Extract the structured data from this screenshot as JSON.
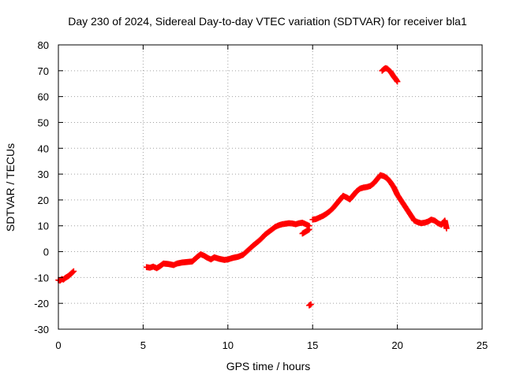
{
  "chart_data": {
    "type": "scatter",
    "title": "Day 230 of 2024, Sidereal Day-to-day VTEC variation (SDTVAR) for receiver bla1",
    "xlabel": "GPS time / hours",
    "ylabel": "SDTVAR / TECUs",
    "xlim": [
      0,
      25
    ],
    "ylim": [
      -30,
      80
    ],
    "xticks": [
      0,
      5,
      10,
      15,
      20,
      25
    ],
    "yticks": [
      -30,
      -20,
      -10,
      0,
      10,
      20,
      30,
      40,
      50,
      60,
      70,
      80
    ],
    "grid": true,
    "legend": "none",
    "marker": "plus",
    "color": "#ff0000",
    "series": [
      {
        "name": "SDTVAR",
        "segments": [
          {
            "x": [
              0.0,
              0.1,
              0.2,
              0.3,
              0.4,
              0.5,
              0.6,
              0.7,
              0.8,
              0.9
            ],
            "y": [
              -11.0,
              -11.2,
              -10.6,
              -10.8,
              -10.2,
              -9.8,
              -9.4,
              -8.8,
              -8.2,
              -7.6
            ]
          },
          {
            "x": [
              5.2,
              5.4,
              5.6,
              5.8,
              6.0,
              6.2,
              6.5,
              6.8,
              7.0,
              7.3,
              7.6,
              7.9,
              8.2,
              8.4,
              8.6,
              8.8,
              9.0,
              9.2,
              9.5,
              9.8,
              10.0,
              10.3,
              10.6,
              10.9,
              11.2,
              11.5,
              11.8,
              12.0,
              12.2,
              12.4,
              12.6,
              12.8,
              13.0,
              13.2,
              13.4,
              13.6,
              13.8,
              14.0,
              14.2,
              14.4,
              14.6,
              14.8
            ],
            "y": [
              -6.0,
              -6.2,
              -5.8,
              -6.4,
              -5.6,
              -4.6,
              -4.8,
              -5.2,
              -4.6,
              -4.2,
              -4.0,
              -3.8,
              -2.0,
              -1.0,
              -1.6,
              -2.4,
              -3.0,
              -2.2,
              -2.8,
              -3.2,
              -3.0,
              -2.4,
              -2.0,
              -1.2,
              0.6,
              2.4,
              4.0,
              5.2,
              6.6,
              7.6,
              8.6,
              9.6,
              10.2,
              10.6,
              10.8,
              11.0,
              10.9,
              10.6,
              11.0,
              11.2,
              10.6,
              10.0
            ]
          },
          {
            "x": [
              14.4,
              14.6,
              14.8
            ],
            "y": [
              7.0,
              7.8,
              8.6
            ]
          },
          {
            "x": [
              14.8,
              14.9
            ],
            "y": [
              -20.8,
              -20.4
            ]
          },
          {
            "x": [
              15.0,
              15.2,
              15.4,
              15.6,
              15.8,
              16.0,
              16.2,
              16.4,
              16.6,
              16.8,
              17.0,
              17.2,
              17.4,
              17.6,
              17.8,
              18.0,
              18.2,
              18.4,
              18.6,
              18.8,
              19.0,
              19.2,
              19.4,
              19.6,
              19.8,
              20.0,
              20.2,
              20.4,
              20.6,
              20.8,
              21.0,
              21.2,
              21.4,
              21.6,
              21.8,
              22.0,
              22.2,
              22.4,
              22.6,
              22.8,
              22.9
            ],
            "y": [
              12.4,
              12.6,
              13.2,
              13.8,
              14.6,
              15.6,
              16.8,
              18.4,
              20.0,
              21.6,
              21.0,
              20.2,
              21.8,
              23.4,
              24.4,
              24.8,
              25.0,
              25.4,
              26.4,
              28.0,
              29.6,
              29.2,
              28.4,
              26.8,
              24.8,
              22.0,
              20.0,
              18.0,
              16.0,
              14.0,
              12.0,
              11.4,
              11.0,
              11.2,
              11.6,
              12.4,
              12.0,
              11.0,
              10.4,
              12.0,
              9.0
            ]
          },
          {
            "x": [
              19.1,
              19.2,
              19.3,
              19.4,
              19.5,
              19.6,
              19.7,
              19.8,
              19.9,
              20.0
            ],
            "y": [
              70.0,
              70.6,
              71.0,
              70.8,
              70.2,
              69.6,
              68.6,
              67.6,
              66.8,
              65.8
            ]
          }
        ]
      }
    ]
  }
}
